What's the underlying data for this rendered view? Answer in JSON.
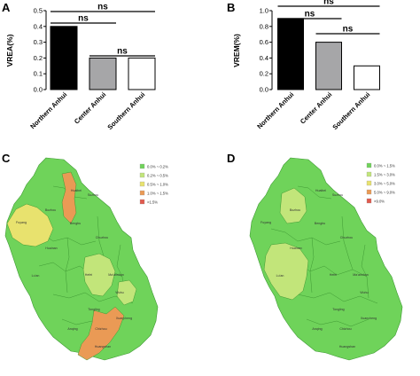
{
  "panels": [
    {
      "letter": "A"
    },
    {
      "letter": "B"
    },
    {
      "letter": "C"
    },
    {
      "letter": "D"
    }
  ],
  "chart_data": [
    {
      "type": "bar",
      "panel": "A",
      "ylabel": "VREA(%)",
      "categories": [
        "Northern Anhui",
        "Center Anhui",
        "Southern Anhui"
      ],
      "values": [
        0.4,
        0.2,
        0.2
      ],
      "bar_colors": [
        "#000000",
        "#a6a6a8",
        "#ffffff"
      ],
      "ylim": [
        0,
        0.5
      ],
      "yticks": [
        "0.0",
        "0.1",
        "0.2",
        "0.3",
        "0.4",
        "0.5"
      ],
      "significance": [
        {
          "from": 0,
          "to": 2,
          "label": "ns"
        },
        {
          "from": 0,
          "to": 1,
          "label": "ns"
        },
        {
          "from": 1,
          "to": 2,
          "label": "ns"
        }
      ]
    },
    {
      "type": "bar",
      "panel": "B",
      "ylabel": "VREM(%)",
      "categories": [
        "Northern Anhui",
        "Center Anhui",
        "Southern Anhui"
      ],
      "values": [
        0.9,
        0.6,
        0.3
      ],
      "bar_colors": [
        "#000000",
        "#a6a6a8",
        "#ffffff"
      ],
      "ylim": [
        0,
        1.0
      ],
      "yticks": [
        "0.0",
        "0.2",
        "0.4",
        "0.6",
        "0.8",
        "1.0"
      ],
      "significance": [
        {
          "from": 0,
          "to": 2,
          "label": "ns"
        },
        {
          "from": 0,
          "to": 1,
          "label": "ns"
        },
        {
          "from": 1,
          "to": 2,
          "label": "ns"
        }
      ]
    }
  ],
  "maps": [
    {
      "panel": "C",
      "legend": [
        {
          "label": "0.0% ~ 0.2%",
          "color": "#6fd35a"
        },
        {
          "label": "0.2% ~ 0.5%",
          "color": "#c2e57a"
        },
        {
          "label": "0.5% ~ 1.0%",
          "color": "#e8e26e"
        },
        {
          "label": "1.0% ~ 1.5%",
          "color": "#ea9a55"
        },
        {
          "label": ">1.5%",
          "color": "#e05a4e"
        }
      ],
      "base_color": "#6fd35a",
      "cities": [
        "Huaibei",
        "Suzhou",
        "Bozhou",
        "Fuyang",
        "Bengbu",
        "Huainan",
        "Chuzhou",
        "Lu'an",
        "Hefei",
        "Ma'anshan",
        "Wuhu",
        "Tongling",
        "Anqing",
        "Chizhou",
        "Xuancheng",
        "Huangshan"
      ]
    },
    {
      "panel": "D",
      "legend": [
        {
          "label": "0.0% ~ 1.5%",
          "color": "#6fd35a"
        },
        {
          "label": "1.5% ~ 3.0%",
          "color": "#c2e57a"
        },
        {
          "label": "3.0% ~ 5.0%",
          "color": "#e8e26e"
        },
        {
          "label": "5.0% ~ 9.0%",
          "color": "#ea9a55"
        },
        {
          "label": ">9.0%",
          "color": "#e05a4e"
        }
      ],
      "base_color": "#6fd35a",
      "cities": [
        "Huaibei",
        "Suzhou",
        "Bozhou",
        "Fuyang",
        "Bengbu",
        "Huainan",
        "Chuzhou",
        "Lu'an",
        "Hefei",
        "Ma'anshan",
        "Wuhu",
        "Tongling",
        "Anqing",
        "Chizhou",
        "Xuancheng",
        "Huangshan"
      ]
    }
  ]
}
